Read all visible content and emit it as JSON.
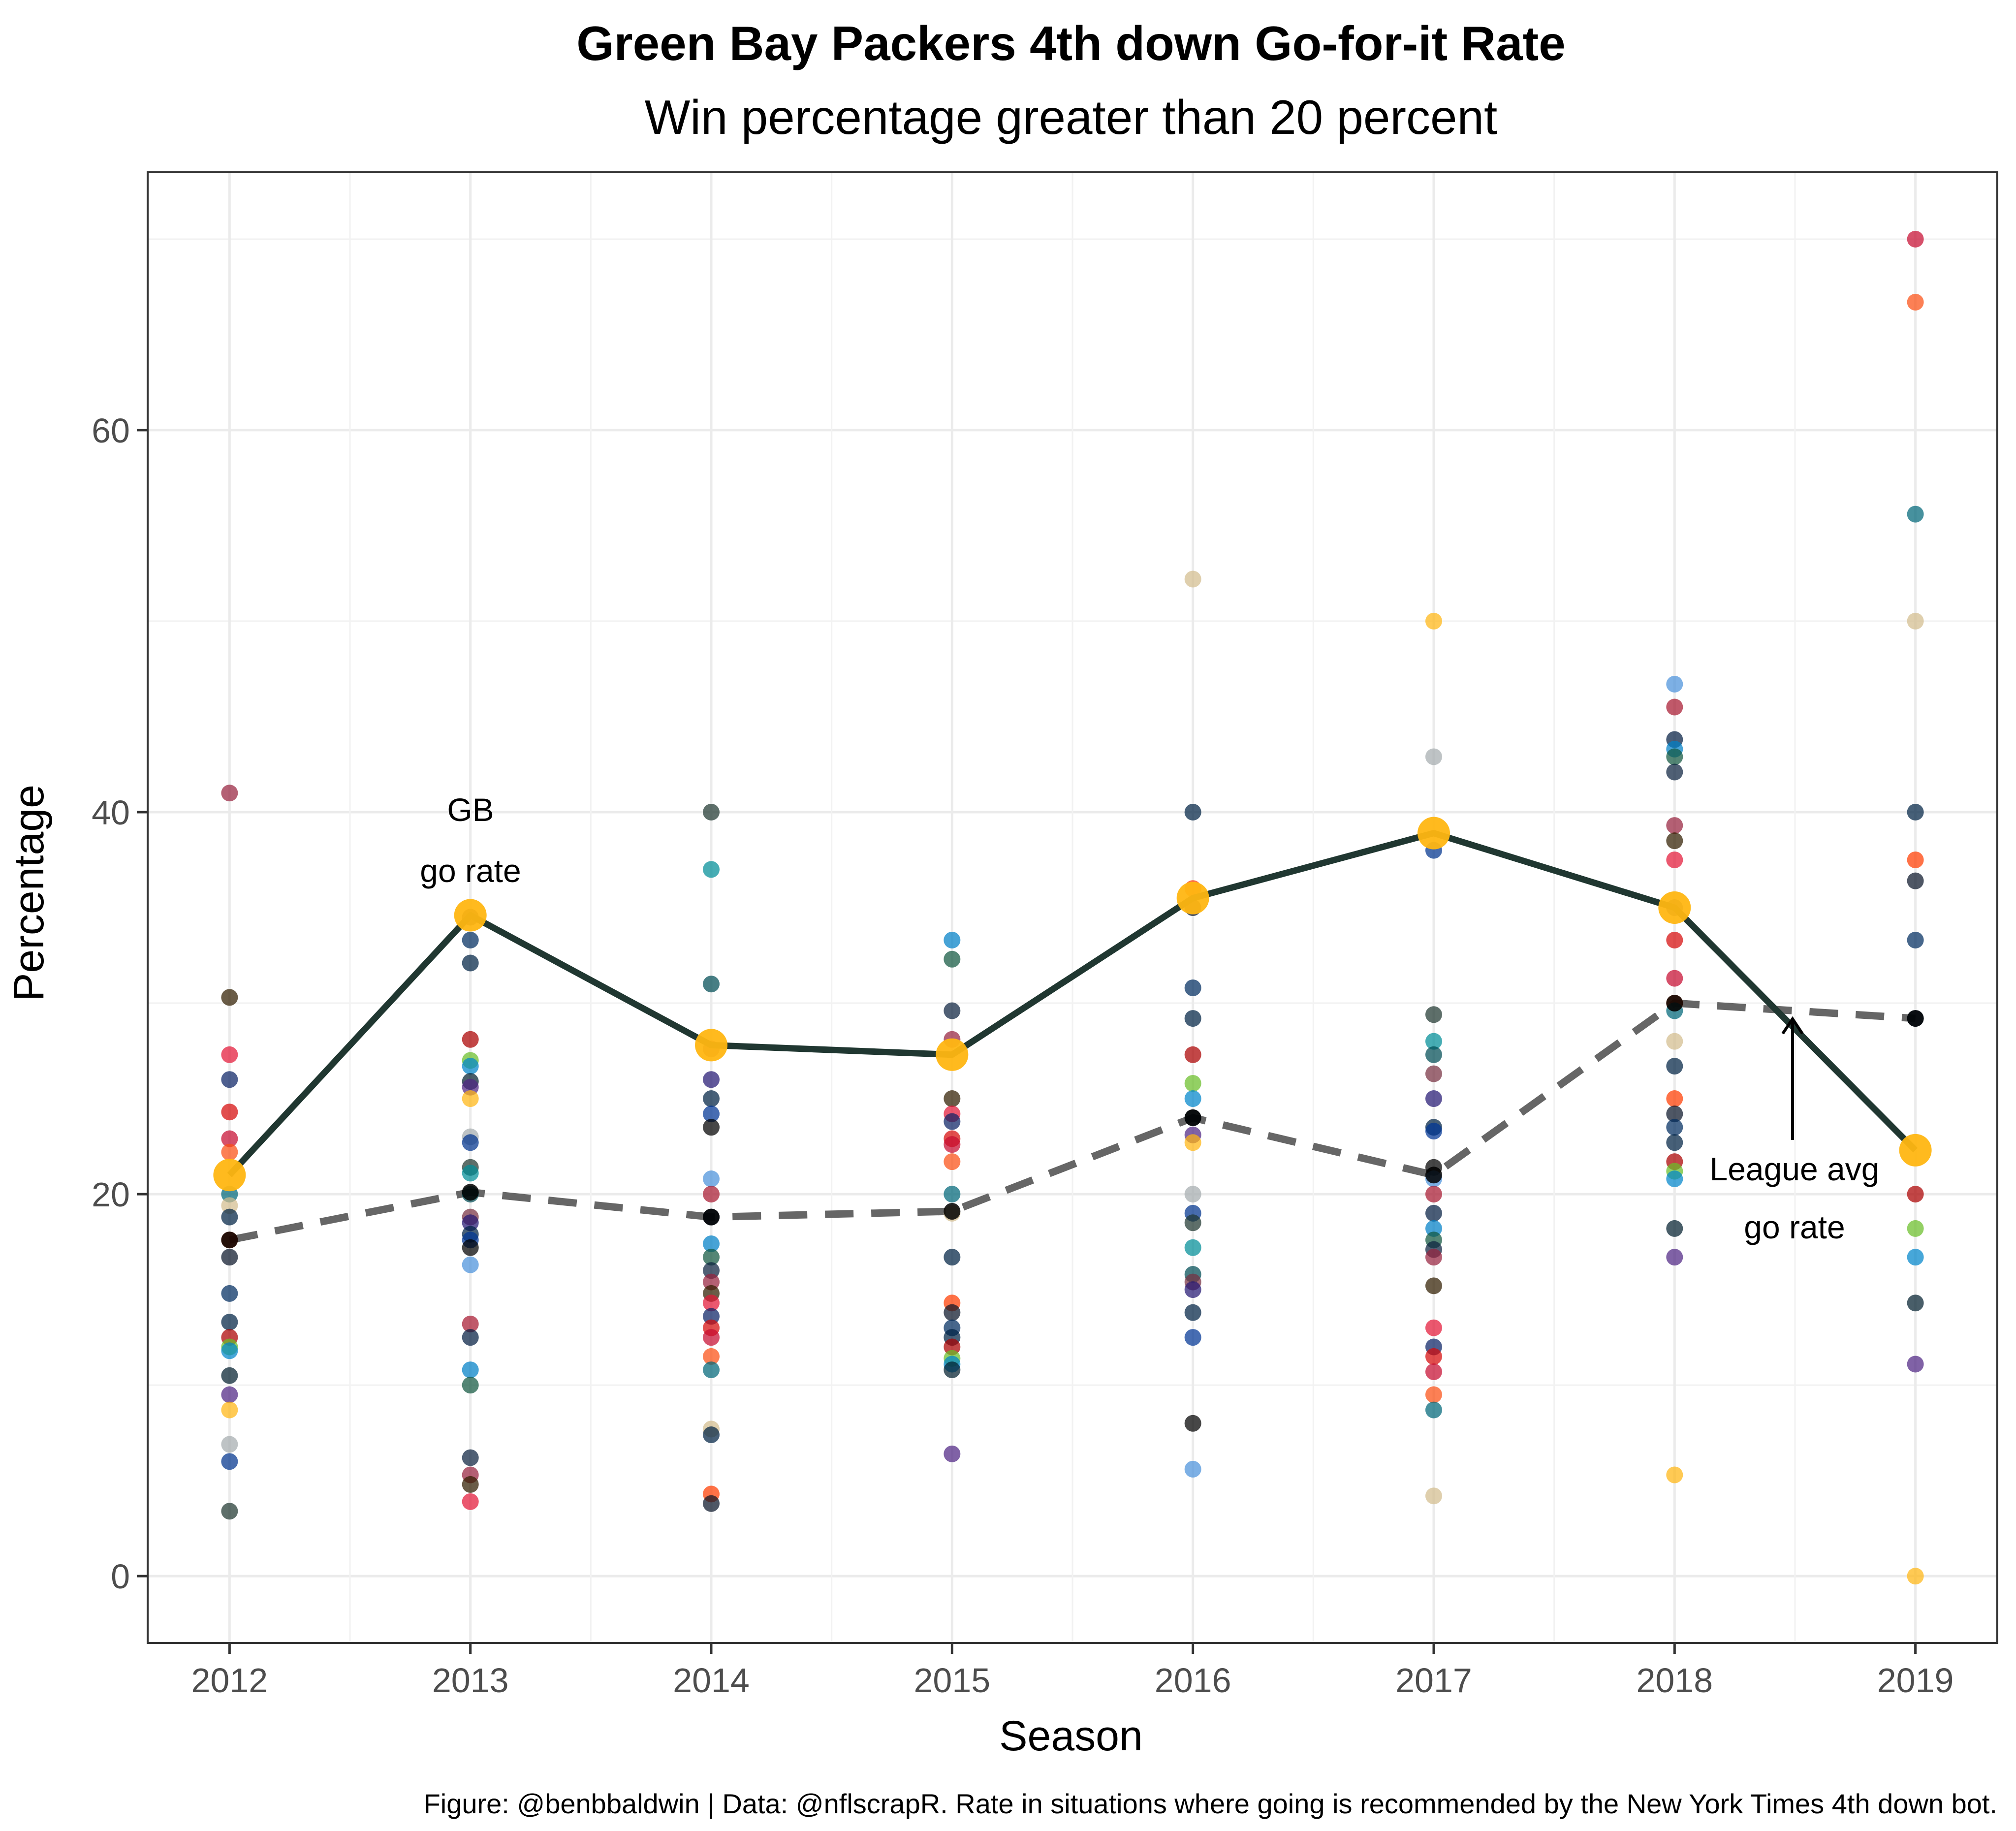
{
  "chart_data": {
    "type": "scatter",
    "title": "Green Bay Packers 4th down Go-for-it Rate",
    "subtitle": "Win percentage greater than 20 percent",
    "xlabel": "Season",
    "ylabel": "Percentage",
    "caption": "Figure: @benbbaldwin | Data: @nflscrapR. Rate in situations where going is recommended by the New York Times 4th down bot.",
    "xlim": [
      2011.66,
      2019.34
    ],
    "ylim": [
      -3.5,
      73.5
    ],
    "x_ticks": [
      2012,
      2013,
      2014,
      2015,
      2016,
      2017,
      2018,
      2019
    ],
    "x_tick_labels": [
      "2012",
      "2013",
      "2014",
      "2015",
      "2016",
      "2017",
      "2018",
      "2019"
    ],
    "y_ticks": [
      0,
      20,
      40,
      60
    ],
    "y_tick_labels": [
      "0",
      "20",
      "40",
      "60"
    ],
    "grid": true,
    "colors": {
      "gb_line": "#203731",
      "gb_point": "#FFB612",
      "league_line": "#666666",
      "team_palette": [
        "#97233F",
        "#A71930",
        "#241773",
        "#00338D",
        "#0085CA",
        "#0B162A",
        "#FB4F14",
        "#311D00",
        "#041E42",
        "#002244",
        "#203731",
        "#03202F",
        "#002C5F",
        "#006778",
        "#E31837",
        "#0080C6",
        "#003594",
        "#008E97",
        "#4F2683",
        "#002244",
        "#D3BC8D",
        "#0B2265",
        "#125740",
        "#000000",
        "#004C54",
        "#FFB612",
        "#AA0000",
        "#002244",
        "#D50A0A",
        "#0C2340",
        "#4B92DB",
        "#773141",
        "#A5ACAF",
        "#69BE28",
        "#FF3C00",
        "#C60C30"
      ]
    },
    "gb_series": {
      "name": "GB go rate",
      "x": [
        2012,
        2013,
        2014,
        2015,
        2016,
        2017,
        2018,
        2019
      ],
      "y": [
        21.0,
        34.6,
        27.8,
        27.3,
        35.5,
        38.9,
        35.0,
        22.3
      ]
    },
    "league_series": {
      "name": "League avg go rate",
      "x": [
        2012,
        2013,
        2014,
        2015,
        2016,
        2017,
        2018,
        2019
      ],
      "y": [
        17.6,
        20.1,
        18.8,
        19.1,
        24.0,
        21.0,
        30.0,
        29.2
      ]
    },
    "team_points": [
      {
        "season": 2012,
        "values": [
          41.0,
          30.3,
          27.3,
          26.0,
          24.3,
          22.9,
          22.2,
          20.0,
          19.4,
          18.8,
          17.6,
          16.7,
          14.8,
          13.3,
          12.5,
          12.0,
          11.8,
          10.5,
          9.5,
          8.7,
          6.9,
          6.0,
          3.4
        ]
      },
      {
        "season": 2013,
        "values": [
          34.5,
          33.3,
          32.1,
          28.1,
          27.0,
          26.7,
          25.9,
          25.6,
          25.0,
          23.0,
          22.7,
          21.4,
          21.1,
          20.0,
          18.8,
          18.5,
          17.9,
          17.6,
          17.2,
          16.3,
          13.2,
          12.5,
          10.8,
          10.0,
          6.2,
          5.3,
          4.8,
          3.9
        ]
      },
      {
        "season": 2014,
        "values": [
          40.0,
          37.0,
          31.0,
          27.6,
          26.0,
          25.0,
          24.2,
          23.5,
          20.8,
          20.0,
          18.8,
          17.4,
          16.7,
          16.0,
          15.4,
          14.8,
          14.3,
          13.6,
          13.0,
          12.5,
          11.5,
          10.8,
          7.7,
          7.4,
          4.3,
          3.8
        ]
      },
      {
        "season": 2015,
        "values": [
          33.3,
          32.3,
          29.6,
          28.1,
          25.0,
          24.2,
          23.8,
          22.9,
          22.6,
          21.7,
          20.0,
          19.0,
          16.7,
          14.3,
          13.8,
          13.0,
          12.5,
          12.0,
          11.4,
          11.1,
          10.8,
          6.4
        ]
      },
      {
        "season": 2016,
        "values": [
          52.2,
          40.0,
          36.0,
          35.0,
          30.8,
          29.2,
          27.3,
          25.8,
          25.0,
          24.0,
          23.1,
          22.7,
          20.0,
          19.0,
          18.5,
          17.2,
          15.8,
          15.4,
          15.0,
          13.8,
          12.5,
          8.0,
          5.6
        ]
      },
      {
        "season": 2017,
        "values": [
          50.0,
          42.9,
          38.0,
          29.4,
          28.0,
          27.3,
          26.3,
          25.0,
          23.5,
          23.3,
          21.4,
          20.8,
          20.0,
          19.0,
          18.2,
          17.6,
          17.1,
          16.7,
          15.2,
          13.0,
          12.0,
          11.5,
          10.7,
          9.5,
          8.7,
          4.2
        ]
      },
      {
        "season": 2018,
        "values": [
          46.7,
          45.5,
          43.8,
          43.3,
          42.9,
          42.1,
          39.3,
          38.5,
          37.5,
          35.0,
          33.3,
          31.3,
          30.0,
          29.6,
          28.0,
          26.7,
          25.0,
          24.2,
          23.5,
          22.7,
          21.7,
          21.2,
          20.8,
          18.2,
          16.7,
          5.3
        ]
      },
      {
        "season": 2019,
        "values": [
          70.0,
          66.7,
          55.6,
          50.0,
          40.0,
          37.5,
          36.4,
          33.3,
          29.2,
          20.0,
          18.2,
          16.7,
          14.3,
          11.1,
          0.0
        ]
      }
    ],
    "annotations": {
      "gb_label_line1": "GB",
      "gb_label_line2": "go rate",
      "league_label_line1": "League avg",
      "league_label_line2": "go rate"
    }
  }
}
